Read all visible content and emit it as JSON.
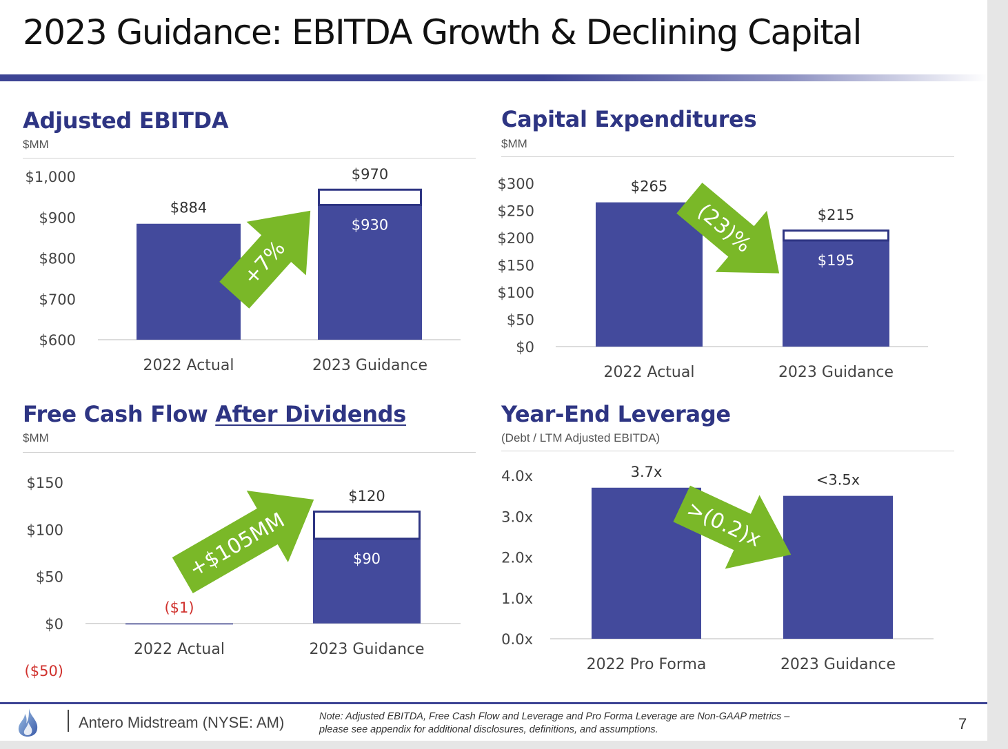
{
  "slide": {
    "title": "2023 Guidance: EBITDA Growth & Declining Capital",
    "footer": {
      "company": "Antero Midstream (NYSE: AM)",
      "note": "Note: Adjusted EBITDA, Free Cash Flow and Leverage and Pro Forma Leverage are Non-GAAP metrics – please see appendix for additional disclosures, definitions, and assumptions.",
      "page_number": "7"
    },
    "colors": {
      "bar": "#434a9c",
      "accent": "#2e3583",
      "arrow": "#7ab828",
      "negative": "#d0312d"
    }
  },
  "chart_data": [
    {
      "id": "ebitda",
      "type": "bar",
      "title": "Adjusted EBITDA",
      "subtitle": "$MM",
      "categories": [
        "2022 Actual",
        "2023 Guidance"
      ],
      "values": [
        884,
        930
      ],
      "range_high": [
        null,
        970
      ],
      "value_labels": [
        "$884",
        "$930"
      ],
      "range_labels": [
        null,
        "$970"
      ],
      "ylim": [
        600,
        1000
      ],
      "yticks": [
        600,
        700,
        800,
        900,
        1000
      ],
      "ytick_labels": [
        "$600",
        "$700",
        "$800",
        "$900",
        "$1,000"
      ],
      "arrow": {
        "label": "+7%",
        "direction": "up"
      }
    },
    {
      "id": "capex",
      "type": "bar",
      "title": "Capital Expenditures",
      "subtitle": "$MM",
      "categories": [
        "2022 Actual",
        "2023 Guidance"
      ],
      "values": [
        265,
        195
      ],
      "range_high": [
        null,
        215
      ],
      "value_labels": [
        "$265",
        "$195"
      ],
      "range_labels": [
        null,
        "$215"
      ],
      "ylim": [
        0,
        300
      ],
      "yticks": [
        0,
        50,
        100,
        150,
        200,
        250,
        300
      ],
      "ytick_labels": [
        "$0",
        "$50",
        "$100",
        "$150",
        "$200",
        "$250",
        "$300"
      ],
      "arrow": {
        "label": "(23)%",
        "direction": "down"
      }
    },
    {
      "id": "fcf",
      "type": "bar",
      "title": "Free Cash Flow",
      "title_underlined": "After Dividends",
      "subtitle": "$MM",
      "categories": [
        "2022 Actual",
        "2023 Guidance"
      ],
      "values": [
        -1,
        90
      ],
      "range_high": [
        null,
        120
      ],
      "value_labels": [
        "($1)",
        "$90"
      ],
      "range_labels": [
        null,
        "$120"
      ],
      "ylim": [
        -50,
        150
      ],
      "yticks": [
        -50,
        0,
        50,
        100,
        150
      ],
      "ytick_labels": [
        "($50)",
        "$0",
        "$50",
        "$100",
        "$150"
      ],
      "arrow": {
        "label": "+$105MM",
        "direction": "up"
      }
    },
    {
      "id": "leverage",
      "type": "bar",
      "title": "Year-End Leverage",
      "subtitle": "(Debt / LTM Adjusted EBITDA)",
      "categories": [
        "2022 Pro Forma",
        "2023 Guidance"
      ],
      "values": [
        3.7,
        3.5
      ],
      "range_high": [
        null,
        null
      ],
      "value_labels": [
        "3.7x",
        "<3.5x"
      ],
      "range_labels": [
        null,
        null
      ],
      "ylim": [
        0,
        4
      ],
      "yticks": [
        0,
        1,
        2,
        3,
        4
      ],
      "ytick_labels": [
        "0.0x",
        "1.0x",
        "2.0x",
        "3.0x",
        "4.0x"
      ],
      "arrow": {
        "label": ">(0.2)x",
        "direction": "down"
      }
    }
  ]
}
